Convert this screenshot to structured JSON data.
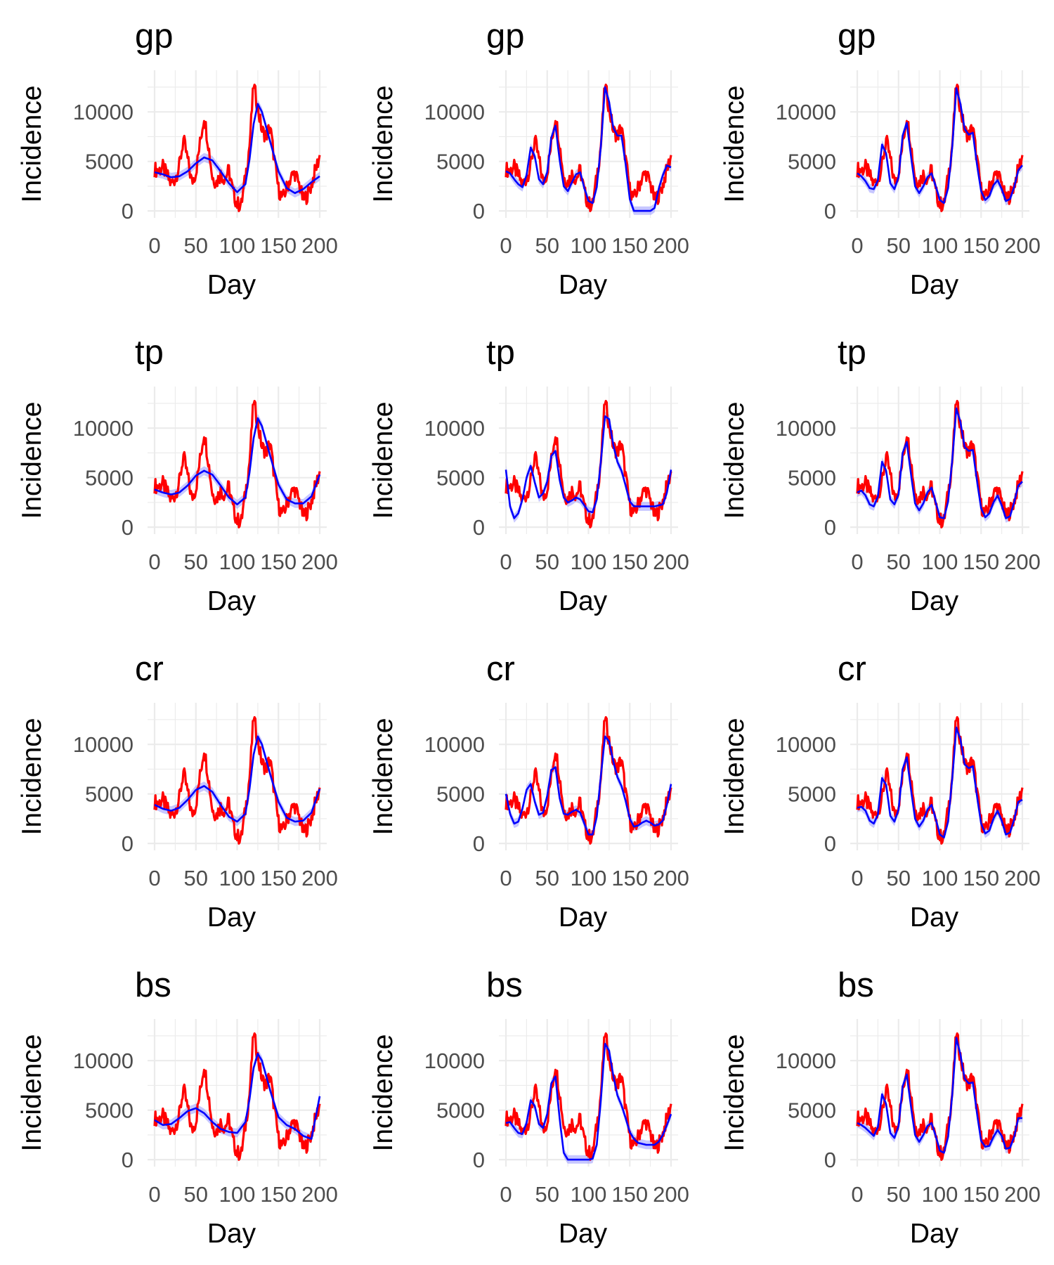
{
  "chart_data": {
    "type": "line",
    "layout": "4x3 facet grid",
    "shared": {
      "xlabel": "Day",
      "ylabel": "Incidence",
      "xlim": [
        0,
        200
      ],
      "ylim": [
        -700,
        14200
      ],
      "xticks": [
        "0",
        "50",
        "100",
        "150",
        "200"
      ],
      "yticks": [
        "0",
        "5000",
        "10000"
      ],
      "grid": true,
      "observed_color": "#ff0000",
      "fit_color": "#0000ff",
      "band_color": "#9999ff"
    },
    "observed": {
      "x": [
        0,
        5,
        10,
        15,
        20,
        25,
        30,
        35,
        40,
        45,
        50,
        55,
        60,
        65,
        70,
        75,
        80,
        85,
        90,
        95,
        100,
        105,
        110,
        115,
        120,
        125,
        130,
        135,
        140,
        145,
        150,
        155,
        160,
        165,
        170,
        175,
        180,
        185,
        190,
        195,
        200
      ],
      "values": [
        4200,
        4100,
        4400,
        3600,
        2700,
        3300,
        4600,
        7200,
        5200,
        2900,
        3900,
        6800,
        9600,
        6800,
        3400,
        2900,
        3700,
        3300,
        4100,
        1900,
        700,
        600,
        3400,
        6600,
        12800,
        10400,
        8100,
        7600,
        8500,
        5200,
        2200,
        1200,
        2300,
        3400,
        3800,
        2700,
        1100,
        1600,
        2600,
        4200,
        5500
      ]
    },
    "panels": [
      {
        "title": "gp",
        "fit_x": [
          0,
          10,
          20,
          30,
          40,
          50,
          60,
          70,
          80,
          90,
          100,
          110,
          115,
          120,
          125,
          130,
          140,
          150,
          160,
          170,
          180,
          190,
          200
        ],
        "fit_values": [
          3900,
          3700,
          3400,
          3500,
          4000,
          4800,
          5400,
          5100,
          4000,
          2800,
          1900,
          2700,
          5200,
          8800,
          10800,
          10000,
          7000,
          4000,
          2300,
          1800,
          2200,
          2900,
          3500
        ]
      },
      {
        "title": "gp",
        "fit_x": [
          0,
          5,
          10,
          15,
          20,
          25,
          30,
          35,
          40,
          45,
          50,
          55,
          60,
          65,
          70,
          75,
          80,
          85,
          90,
          95,
          100,
          105,
          110,
          115,
          120,
          125,
          130,
          135,
          140,
          145,
          150,
          155,
          160,
          165,
          170,
          175,
          180,
          185,
          190,
          195,
          200
        ],
        "fit_values": [
          4000,
          3800,
          3200,
          2700,
          2400,
          3600,
          6400,
          5500,
          3200,
          2700,
          3900,
          7400,
          8600,
          5200,
          2500,
          2000,
          2900,
          3700,
          3900,
          2300,
          1000,
          800,
          2400,
          6500,
          12500,
          11000,
          8400,
          7600,
          7600,
          4700,
          1200,
          0,
          0,
          0,
          0,
          0,
          300,
          2200,
          3600,
          4600,
          4400
        ]
      },
      {
        "title": "gp",
        "fit_x": [
          0,
          5,
          10,
          15,
          20,
          25,
          30,
          35,
          40,
          45,
          50,
          55,
          60,
          65,
          70,
          75,
          80,
          85,
          90,
          95,
          100,
          105,
          110,
          115,
          120,
          125,
          130,
          135,
          140,
          145,
          150,
          155,
          160,
          165,
          170,
          175,
          180,
          185,
          190,
          195,
          200
        ],
        "fit_values": [
          3800,
          3500,
          3000,
          2300,
          2200,
          3100,
          6700,
          5800,
          2800,
          2200,
          3400,
          7600,
          8900,
          5600,
          2500,
          1800,
          2500,
          3400,
          3800,
          2500,
          1100,
          800,
          2300,
          6400,
          12400,
          10800,
          8300,
          7700,
          7900,
          4700,
          2000,
          1100,
          1500,
          2600,
          3100,
          2200,
          1000,
          1200,
          2400,
          4100,
          4600
        ]
      },
      {
        "title": "tp",
        "fit_x": [
          0,
          10,
          20,
          30,
          40,
          50,
          60,
          70,
          80,
          90,
          100,
          110,
          115,
          120,
          125,
          130,
          140,
          150,
          160,
          170,
          180,
          190,
          200
        ],
        "fit_values": [
          3800,
          3500,
          3300,
          3500,
          4200,
          5200,
          5700,
          5300,
          4200,
          3000,
          2300,
          3000,
          5500,
          9000,
          11000,
          10200,
          7200,
          4300,
          2800,
          2400,
          2400,
          3100,
          5300
        ]
      },
      {
        "title": "tp",
        "fit_x": [
          0,
          5,
          10,
          15,
          20,
          25,
          30,
          35,
          40,
          45,
          50,
          55,
          60,
          65,
          70,
          75,
          80,
          85,
          90,
          95,
          100,
          105,
          110,
          115,
          120,
          125,
          130,
          135,
          140,
          145,
          150,
          155,
          160,
          165,
          170,
          175,
          180,
          185,
          190,
          195,
          200
        ],
        "fit_values": [
          5800,
          2100,
          900,
          1400,
          2800,
          5000,
          6200,
          4500,
          3000,
          3400,
          4600,
          7200,
          7700,
          4800,
          3000,
          2500,
          2700,
          3000,
          2800,
          2200,
          1600,
          1500,
          2800,
          6600,
          11200,
          10900,
          8300,
          6600,
          5700,
          4200,
          2600,
          2100,
          2100,
          2100,
          2100,
          2100,
          2100,
          2200,
          2300,
          3500,
          5800
        ]
      },
      {
        "title": "tp",
        "fit_x": [
          0,
          5,
          10,
          15,
          20,
          25,
          30,
          35,
          40,
          45,
          50,
          55,
          60,
          65,
          70,
          75,
          80,
          85,
          90,
          95,
          100,
          105,
          110,
          115,
          120,
          125,
          130,
          135,
          140,
          145,
          150,
          155,
          160,
          165,
          170,
          175,
          180,
          185,
          190,
          195,
          200
        ],
        "fit_values": [
          3500,
          3700,
          3200,
          2300,
          2100,
          3100,
          6600,
          5700,
          2800,
          2300,
          3300,
          7500,
          8600,
          5400,
          2400,
          1700,
          2400,
          3500,
          4000,
          2500,
          1000,
          900,
          2600,
          6700,
          12000,
          10600,
          8100,
          7700,
          7800,
          4700,
          1900,
          1000,
          1400,
          2500,
          3200,
          2200,
          900,
          1100,
          2500,
          4200,
          4600
        ]
      },
      {
        "title": "cr",
        "fit_x": [
          0,
          10,
          20,
          30,
          40,
          50,
          60,
          70,
          80,
          90,
          100,
          110,
          115,
          120,
          125,
          130,
          140,
          150,
          160,
          170,
          180,
          190,
          200
        ],
        "fit_values": [
          3900,
          3500,
          3300,
          3600,
          4400,
          5400,
          5800,
          5200,
          3900,
          2700,
          2200,
          3000,
          5500,
          9000,
          10800,
          10000,
          7000,
          4200,
          2600,
          2200,
          2300,
          3100,
          5500
        ]
      },
      {
        "title": "cr",
        "fit_x": [
          0,
          5,
          10,
          15,
          20,
          25,
          30,
          35,
          40,
          45,
          50,
          55,
          60,
          65,
          70,
          75,
          80,
          85,
          90,
          95,
          100,
          105,
          110,
          115,
          120,
          125,
          130,
          135,
          140,
          145,
          150,
          155,
          160,
          165,
          170,
          175,
          180,
          185,
          190,
          195,
          200
        ],
        "fit_values": [
          5000,
          3000,
          2000,
          2200,
          3500,
          5400,
          6000,
          4200,
          2900,
          3100,
          4800,
          7400,
          7700,
          4600,
          3000,
          2900,
          3200,
          3400,
          3100,
          2000,
          900,
          900,
          2700,
          6800,
          10800,
          10300,
          8300,
          6700,
          5800,
          4300,
          2500,
          1700,
          1800,
          2100,
          2300,
          2100,
          1800,
          1900,
          2300,
          3900,
          6000
        ]
      },
      {
        "title": "cr",
        "fit_x": [
          0,
          5,
          10,
          15,
          20,
          25,
          30,
          35,
          40,
          45,
          50,
          55,
          60,
          65,
          70,
          75,
          80,
          85,
          90,
          95,
          100,
          105,
          110,
          115,
          120,
          125,
          130,
          135,
          140,
          145,
          150,
          155,
          160,
          165,
          170,
          175,
          180,
          185,
          190,
          195,
          200
        ],
        "fit_values": [
          3600,
          3700,
          3300,
          2300,
          2000,
          2900,
          6600,
          5900,
          2800,
          2200,
          3400,
          7500,
          8700,
          5500,
          2500,
          1700,
          2300,
          3400,
          3900,
          2500,
          900,
          600,
          2200,
          6500,
          11700,
          10500,
          8000,
          7600,
          7800,
          4800,
          2000,
          1000,
          1300,
          2500,
          3300,
          2300,
          900,
          1100,
          2400,
          4200,
          4400
        ]
      },
      {
        "title": "bs",
        "fit_x": [
          0,
          10,
          20,
          30,
          40,
          50,
          60,
          70,
          80,
          90,
          100,
          110,
          115,
          120,
          125,
          130,
          140,
          150,
          160,
          170,
          180,
          190,
          200
        ],
        "fit_values": [
          4000,
          3500,
          3600,
          4200,
          4900,
          5200,
          4700,
          3800,
          3100,
          2800,
          2700,
          3800,
          6100,
          9300,
          10700,
          10000,
          7000,
          4300,
          3500,
          3100,
          2400,
          2100,
          6400
        ]
      },
      {
        "title": "bs",
        "fit_x": [
          0,
          5,
          10,
          15,
          20,
          25,
          30,
          35,
          40,
          45,
          50,
          55,
          60,
          65,
          70,
          75,
          80,
          85,
          90,
          95,
          100,
          105,
          110,
          115,
          120,
          125,
          130,
          135,
          140,
          145,
          150,
          155,
          160,
          165,
          170,
          175,
          180,
          185,
          190,
          195,
          200
        ],
        "fit_values": [
          3700,
          3800,
          3200,
          2700,
          2600,
          3700,
          6000,
          5400,
          3600,
          3200,
          4600,
          7700,
          8400,
          4200,
          700,
          0,
          0,
          0,
          0,
          0,
          0,
          100,
          1500,
          6000,
          11700,
          11000,
          8500,
          6500,
          5500,
          4200,
          2800,
          2100,
          1700,
          1600,
          1500,
          1500,
          1500,
          1800,
          2500,
          3500,
          4600
        ]
      },
      {
        "title": "bs",
        "fit_x": [
          0,
          5,
          10,
          15,
          20,
          25,
          30,
          35,
          40,
          45,
          50,
          55,
          60,
          65,
          70,
          75,
          80,
          85,
          90,
          95,
          100,
          105,
          110,
          115,
          120,
          125,
          130,
          135,
          140,
          145,
          150,
          155,
          160,
          165,
          170,
          175,
          180,
          185,
          190,
          195,
          200
        ],
        "fit_values": [
          3700,
          3500,
          3200,
          2800,
          2400,
          3300,
          6600,
          5600,
          2700,
          2200,
          3400,
          7400,
          8600,
          5400,
          2500,
          1800,
          2500,
          3400,
          3700,
          2400,
          900,
          700,
          2300,
          6500,
          12300,
          10600,
          8200,
          7700,
          7800,
          4700,
          1900,
          1300,
          1400,
          2300,
          3000,
          2400,
          1100,
          1200,
          2300,
          4200,
          4200
        ]
      }
    ]
  }
}
